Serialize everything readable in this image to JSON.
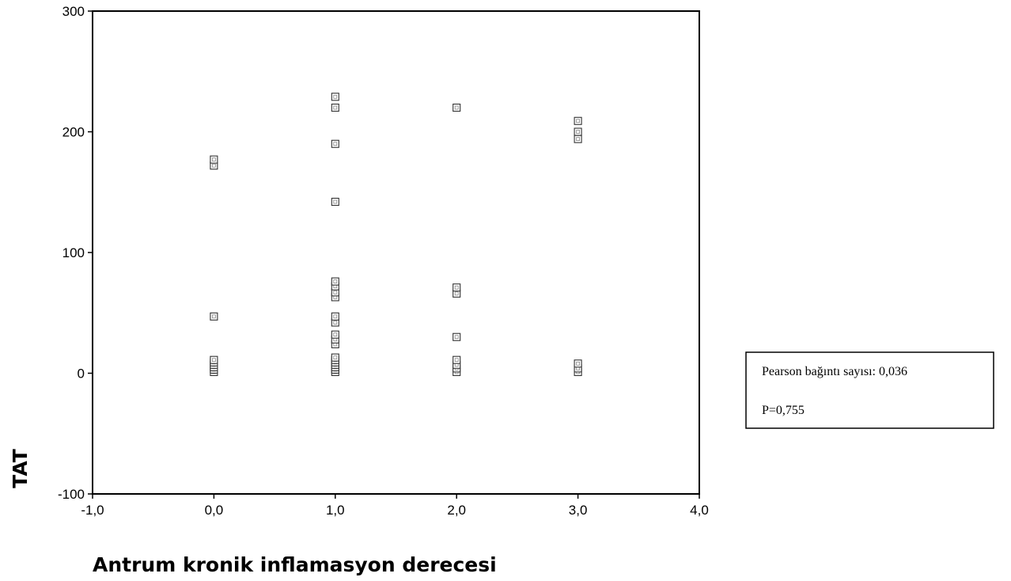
{
  "chart_data": {
    "type": "scatter",
    "title": "",
    "xlabel": "Antrum kronik inflamasyon derecesi",
    "ylabel": "TAT",
    "xlim": [
      -1.0,
      4.0
    ],
    "ylim": [
      -100,
      300
    ],
    "x_ticks": [
      "-1,0",
      "0,0",
      "1,0",
      "2,0",
      "3,0",
      "4,0"
    ],
    "x_tick_values": [
      -1,
      0,
      1,
      2,
      3,
      4
    ],
    "y_ticks": [
      "-100",
      "0",
      "100",
      "200",
      "300"
    ],
    "y_tick_values": [
      -100,
      0,
      100,
      200,
      300
    ],
    "grid": false,
    "marker": "open-square",
    "points": [
      {
        "x": 0,
        "y": 1
      },
      {
        "x": 0,
        "y": 3
      },
      {
        "x": 0,
        "y": 5
      },
      {
        "x": 0,
        "y": 7
      },
      {
        "x": 0,
        "y": 9
      },
      {
        "x": 0,
        "y": 11
      },
      {
        "x": 0,
        "y": 47
      },
      {
        "x": 0,
        "y": 172
      },
      {
        "x": 0,
        "y": 177
      },
      {
        "x": 1,
        "y": 1
      },
      {
        "x": 1,
        "y": 3
      },
      {
        "x": 1,
        "y": 5
      },
      {
        "x": 1,
        "y": 7
      },
      {
        "x": 1,
        "y": 9
      },
      {
        "x": 1,
        "y": 11
      },
      {
        "x": 1,
        "y": 13
      },
      {
        "x": 1,
        "y": 24
      },
      {
        "x": 1,
        "y": 28
      },
      {
        "x": 1,
        "y": 32
      },
      {
        "x": 1,
        "y": 42
      },
      {
        "x": 1,
        "y": 47
      },
      {
        "x": 1,
        "y": 63
      },
      {
        "x": 1,
        "y": 67
      },
      {
        "x": 1,
        "y": 72
      },
      {
        "x": 1,
        "y": 76
      },
      {
        "x": 1,
        "y": 142
      },
      {
        "x": 1,
        "y": 190
      },
      {
        "x": 1,
        "y": 220
      },
      {
        "x": 1,
        "y": 229
      },
      {
        "x": 2,
        "y": 1
      },
      {
        "x": 2,
        "y": 4
      },
      {
        "x": 2,
        "y": 7
      },
      {
        "x": 2,
        "y": 11
      },
      {
        "x": 2,
        "y": 30
      },
      {
        "x": 2,
        "y": 66
      },
      {
        "x": 2,
        "y": 71
      },
      {
        "x": 2,
        "y": 220
      },
      {
        "x": 3,
        "y": 1
      },
      {
        "x": 3,
        "y": 4
      },
      {
        "x": 3,
        "y": 8
      },
      {
        "x": 3,
        "y": 194
      },
      {
        "x": 3,
        "y": 200
      },
      {
        "x": 3,
        "y": 209
      }
    ],
    "annotation": {
      "lines": [
        "Pearson bağıntı sayısı: 0,036",
        "P=0,755"
      ]
    }
  }
}
